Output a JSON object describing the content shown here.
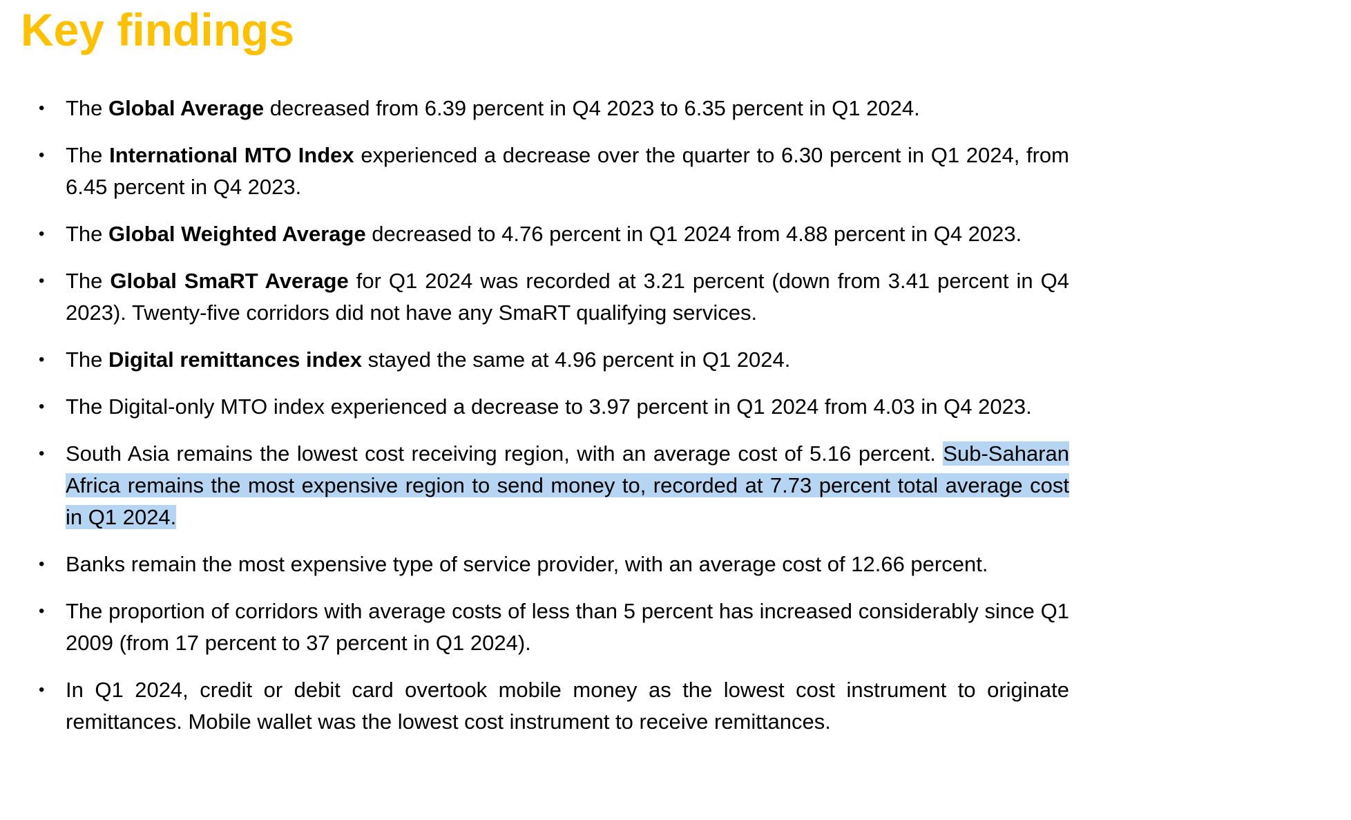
{
  "page": {
    "background": "#ffffff",
    "heading": {
      "text": "Key findings",
      "color": "#FFC000"
    },
    "bullet_glyph": "•",
    "highlight_color": "#b5d5f3",
    "bullets": [
      {
        "segments": [
          {
            "text": "The ",
            "bold": false
          },
          {
            "text": "Global Average",
            "bold": true
          },
          {
            "text": " decreased from 6.39 percent in Q4 2023 to 6.35 percent in Q1 2024.",
            "bold": false
          }
        ]
      },
      {
        "segments": [
          {
            "text": "The ",
            "bold": false
          },
          {
            "text": "International MTO Index",
            "bold": true
          },
          {
            "text": " experienced a decrease over the quarter to 6.30 percent in Q1 2024, from 6.45 percent in Q4 2023.",
            "bold": false
          }
        ]
      },
      {
        "segments": [
          {
            "text": "The ",
            "bold": false
          },
          {
            "text": "Global Weighted Average",
            "bold": true
          },
          {
            "text": " decreased to 4.76 percent in Q1 2024 from 4.88 percent in Q4 2023.",
            "bold": false
          }
        ]
      },
      {
        "segments": [
          {
            "text": "The ",
            "bold": false
          },
          {
            "text": "Global SmaRT Average",
            "bold": true
          },
          {
            "text": " for Q1 2024 was recorded at 3.21 percent (down from 3.41 percent in Q4 2023). Twenty-five corridors did not have any SmaRT qualifying services.",
            "bold": false
          }
        ]
      },
      {
        "segments": [
          {
            "text": "The ",
            "bold": false
          },
          {
            "text": "Digital remittances index",
            "bold": true
          },
          {
            "text": " stayed the same at 4.96 percent in Q1 2024.",
            "bold": false
          }
        ]
      },
      {
        "segments": [
          {
            "text": "The Digital-only MTO index experienced a decrease to 3.97 percent in Q1 2024 from 4.03 in Q4 2023.",
            "bold": false
          }
        ]
      },
      {
        "segments": [
          {
            "text": "South Asia remains the lowest cost receiving region, with an average cost of 5.16 percent. ",
            "bold": false
          },
          {
            "text": "Sub-Saharan Africa remains the most expensive region to send money to, recorded at 7.73 percent total average cost in Q1 2024.",
            "bold": false,
            "highlight": true
          }
        ]
      },
      {
        "segments": [
          {
            "text": "Banks remain the most expensive type of service provider, with an average cost of 12.66 percent.",
            "bold": false
          }
        ]
      },
      {
        "segments": [
          {
            "text": "The proportion of corridors with average costs of less than 5 percent has increased considerably since Q1 2009 (from 17 percent to 37 percent in Q1 2024).",
            "bold": false
          }
        ]
      },
      {
        "segments": [
          {
            "text": "In Q1 2024, credit or debit card overtook mobile money as the lowest cost instrument to originate remittances. Mobile wallet was the lowest cost instrument to receive remittances.",
            "bold": false
          }
        ]
      }
    ]
  }
}
